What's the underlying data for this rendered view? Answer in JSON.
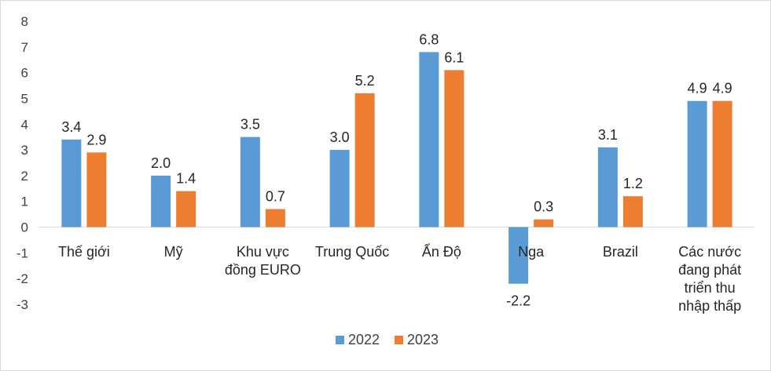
{
  "chart_data": {
    "type": "bar",
    "title": "",
    "xlabel": "",
    "ylabel": "",
    "ylim": [
      -3,
      8
    ],
    "yticks": [
      -3,
      -2,
      -1,
      0,
      1,
      2,
      3,
      4,
      5,
      6,
      7,
      8
    ],
    "grid": false,
    "legend_position": "bottom",
    "categories": [
      [
        "Thế giới"
      ],
      [
        "Mỹ"
      ],
      [
        "Khu vực",
        "đồng EURO"
      ],
      [
        "Trung Quốc"
      ],
      [
        "Ấn Độ"
      ],
      [
        "Nga"
      ],
      [
        "Brazil"
      ],
      [
        "Các nước",
        "đang phát",
        "triển thu",
        "nhập thấp"
      ]
    ],
    "series": [
      {
        "name": "2022",
        "color": "#5b9bd5",
        "values": [
          3.4,
          2.0,
          3.5,
          3.0,
          6.8,
          -2.2,
          3.1,
          4.9
        ],
        "labels": [
          "3.4",
          "2.0",
          "3.5",
          "3.0",
          "6.8",
          "-2.2",
          "3.1",
          "4.9"
        ]
      },
      {
        "name": "2023",
        "color": "#ed7d31",
        "values": [
          2.9,
          1.4,
          0.7,
          5.2,
          6.1,
          0.3,
          1.2,
          4.9
        ],
        "labels": [
          "2.9",
          "1.4",
          "0.7",
          "5.2",
          "6.1",
          "0.3",
          "1.2",
          "4.9"
        ]
      }
    ]
  }
}
